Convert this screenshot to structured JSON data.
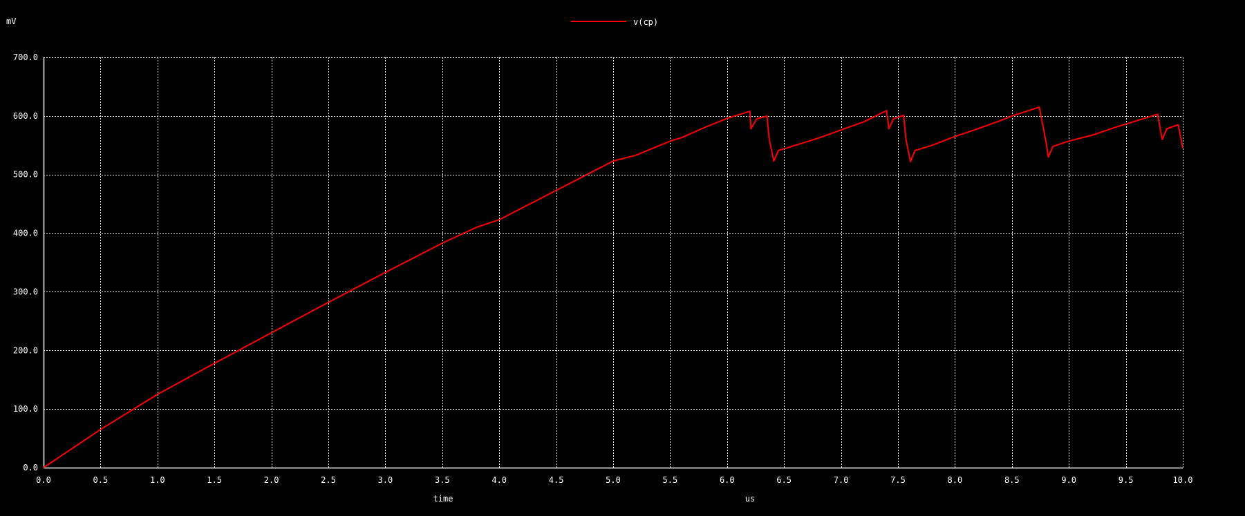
{
  "chart_data": {
    "type": "line",
    "y_unit": "mV",
    "x_label": "time",
    "x_unit": "us",
    "xlim": [
      0,
      10
    ],
    "ylim": [
      0,
      700
    ],
    "x_ticks": [
      "0.0",
      "0.5",
      "1.0",
      "1.5",
      "2.0",
      "2.5",
      "3.0",
      "3.5",
      "4.0",
      "4.5",
      "5.0",
      "5.5",
      "6.0",
      "6.5",
      "7.0",
      "7.5",
      "8.0",
      "8.5",
      "9.0",
      "9.5",
      "10.0"
    ],
    "y_ticks": [
      "0.0",
      "100.0",
      "200.0",
      "300.0",
      "400.0",
      "500.0",
      "600.0",
      "700.0"
    ],
    "x_tick_values": [
      0,
      0.5,
      1,
      1.5,
      2,
      2.5,
      3,
      3.5,
      4,
      4.5,
      5,
      5.5,
      6,
      6.5,
      7,
      7.5,
      8,
      8.5,
      9,
      9.5,
      10
    ],
    "y_tick_values": [
      0,
      100,
      200,
      300,
      400,
      500,
      600,
      700
    ],
    "grid": true,
    "legend_position": "top-center",
    "colors": {
      "background": "#000000",
      "axes": "#ffffff",
      "grid": "#ffffff",
      "text": "#ffffff"
    },
    "series": [
      {
        "name": "v(cp)",
        "color": "#ff0000",
        "points": [
          [
            0.0,
            0
          ],
          [
            0.5,
            65
          ],
          [
            1.0,
            125
          ],
          [
            1.5,
            178
          ],
          [
            2.0,
            230
          ],
          [
            2.5,
            282
          ],
          [
            3.0,
            333
          ],
          [
            3.5,
            383
          ],
          [
            3.8,
            410
          ],
          [
            4.0,
            423
          ],
          [
            4.5,
            473
          ],
          [
            5.0,
            523
          ],
          [
            5.2,
            533
          ],
          [
            5.5,
            557
          ],
          [
            5.6,
            563
          ],
          [
            5.8,
            580
          ],
          [
            6.0,
            596
          ],
          [
            6.2,
            608
          ],
          [
            6.21,
            578
          ],
          [
            6.26,
            595
          ],
          [
            6.35,
            600
          ],
          [
            6.37,
            560
          ],
          [
            6.41,
            523
          ],
          [
            6.45,
            541
          ],
          [
            6.6,
            550
          ],
          [
            6.8,
            562
          ],
          [
            7.0,
            576
          ],
          [
            7.2,
            590
          ],
          [
            7.4,
            609
          ],
          [
            7.42,
            578
          ],
          [
            7.46,
            595
          ],
          [
            7.55,
            601
          ],
          [
            7.57,
            560
          ],
          [
            7.61,
            522
          ],
          [
            7.65,
            541
          ],
          [
            7.8,
            550
          ],
          [
            8.0,
            565
          ],
          [
            8.2,
            578
          ],
          [
            8.4,
            592
          ],
          [
            8.5,
            600
          ],
          [
            8.74,
            615
          ],
          [
            8.8,
            555
          ],
          [
            8.82,
            530
          ],
          [
            8.86,
            548
          ],
          [
            9.0,
            557
          ],
          [
            9.2,
            567
          ],
          [
            9.4,
            580
          ],
          [
            9.6,
            592
          ],
          [
            9.78,
            603
          ],
          [
            9.8,
            580
          ],
          [
            9.82,
            560
          ],
          [
            9.86,
            578
          ],
          [
            9.96,
            585
          ],
          [
            10.0,
            545
          ]
        ]
      }
    ]
  }
}
